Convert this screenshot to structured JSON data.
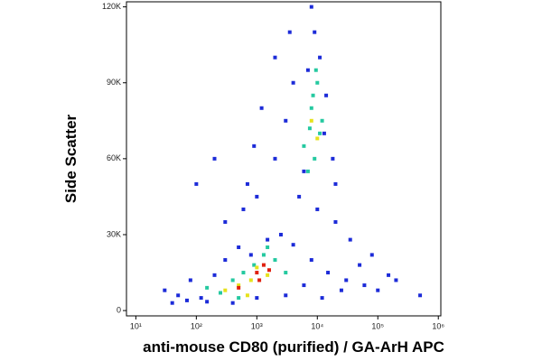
{
  "chart_data": {
    "type": "scatter",
    "xlabel": "anti-mouse CD80 (purified) / GA-ArH APC",
    "ylabel": "Side Scatter",
    "xscale": "log",
    "xlim": [
      7,
      1100000
    ],
    "ylim": [
      -2100,
      122000
    ],
    "xticks": [
      {
        "value": 10,
        "label": "10¹"
      },
      {
        "value": 100,
        "label": "10²"
      },
      {
        "value": 1000,
        "label": "10³"
      },
      {
        "value": 10000,
        "label": "10⁴"
      },
      {
        "value": 100000,
        "label": "10⁵"
      },
      {
        "value": 1000000,
        "label": "10⁶"
      }
    ],
    "yticks": [
      0,
      {
        "value": 30000,
        "label": "30K"
      },
      {
        "value": 60000,
        "label": "60K"
      },
      {
        "value": 90000,
        "label": "90K"
      },
      {
        "value": 120000,
        "label": "120K"
      }
    ],
    "series": [
      {
        "color": "#1c2bd8",
        "x": [
          30,
          50,
          80,
          120,
          200,
          300,
          500,
          800,
          1500,
          2500,
          4000,
          8000,
          15000,
          30000,
          60000,
          100000,
          200000,
          500000,
          40,
          70,
          150,
          400,
          1000,
          3000,
          6000,
          12000,
          25000,
          5000,
          7000,
          9000,
          11000,
          14000,
          18000,
          6000,
          8000,
          10000,
          13000,
          4000,
          20000,
          3000,
          2000,
          1000,
          600,
          300,
          200,
          100,
          50000,
          80000,
          150000,
          20000,
          35000,
          700,
          900,
          1200,
          2000,
          3500
        ],
        "values": [
          8000,
          6000,
          12000,
          5000,
          14000,
          20000,
          25000,
          22000,
          28000,
          30000,
          26000,
          20000,
          15000,
          12000,
          10000,
          8000,
          12000,
          6000,
          3000,
          4000,
          3500,
          3000,
          5000,
          6000,
          10000,
          5000,
          8000,
          45000,
          95000,
          110000,
          100000,
          85000,
          60000,
          55000,
          120000,
          40000,
          70000,
          90000,
          50000,
          75000,
          60000,
          45000,
          40000,
          35000,
          60000,
          50000,
          18000,
          22000,
          14000,
          35000,
          28000,
          50000,
          65000,
          80000,
          100000,
          110000
        ]
      },
      {
        "color": "#25c9a0",
        "x": [
          150,
          250,
          400,
          600,
          900,
          1300,
          2000,
          3000,
          500,
          1500,
          6000,
          8000,
          10000,
          12000,
          7000,
          9000,
          11000,
          8500,
          9500,
          7500
        ],
        "values": [
          9000,
          7000,
          12000,
          15000,
          18000,
          22000,
          20000,
          15000,
          5000,
          25000,
          65000,
          80000,
          90000,
          75000,
          55000,
          60000,
          70000,
          85000,
          95000,
          72000
        ]
      },
      {
        "color": "#e6e21c",
        "x": [
          300,
          500,
          800,
          1000,
          1500,
          700,
          8000,
          10000
        ],
        "values": [
          8000,
          10000,
          12000,
          17000,
          14000,
          6000,
          75000,
          68000
        ]
      },
      {
        "color": "#e0200f",
        "x": [
          1000,
          1300,
          1100,
          1600,
          500
        ],
        "values": [
          15000,
          18000,
          12000,
          16000,
          9000
        ]
      }
    ]
  }
}
